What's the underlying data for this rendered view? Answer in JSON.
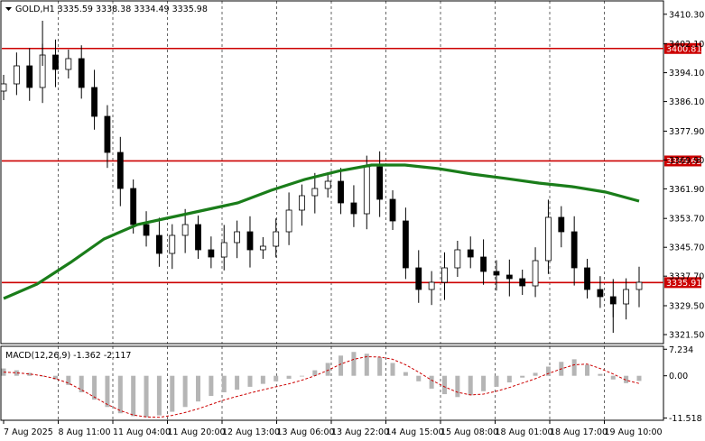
{
  "header": {
    "title": "GOLD,H1  3335.59 3338.38 3334.49 3335.98"
  },
  "macd": {
    "label": "MACD(12,26,9) -1.362 -2.117",
    "ticks": [
      7.234,
      0.0,
      -11.518
    ],
    "tick_labels": [
      "7.234",
      "0.00",
      "-11.518"
    ]
  },
  "chart_data": [
    {
      "type": "candlestick",
      "title": "GOLD,H1",
      "ylim": [
        3319,
        3414
      ],
      "y_ticks": [
        3410.3,
        3402.1,
        3394.1,
        3386.1,
        3377.9,
        3369.9,
        3361.9,
        3353.7,
        3345.7,
        3337.7,
        3329.5,
        3321.5
      ],
      "y_tick_labels": [
        "3410.30",
        "3402.10",
        "3394.10",
        "3386.10",
        "3377.90",
        "3369.90",
        "3361.90",
        "3353.70",
        "3345.70",
        "3337.70",
        "3329.50",
        "3321.50"
      ],
      "x_tick_labels": [
        "7 Aug 2025",
        "8 Aug 11:00",
        "11 Aug 04:00",
        "11 Aug 20:00",
        "12 Aug 13:00",
        "13 Aug 06:00",
        "13 Aug 22:00",
        "14 Aug 15:00",
        "15 Aug 08:00",
        "18 Aug 01:00",
        "18 Aug 17:00",
        "19 Aug 10:00"
      ],
      "grid": true,
      "horizontal_levels": [
        {
          "value": 3400.81,
          "label": "3400.81",
          "color": "#cc0000"
        },
        {
          "value": 3369.63,
          "label": "3369.63",
          "color": "#cc0000"
        },
        {
          "value": 3335.91,
          "label": "3335.91",
          "color": "#cc0000"
        }
      ],
      "moving_average": {
        "color": "#1a7d1a",
        "values": [
          3331.5,
          3335.5,
          3341.5,
          3348.0,
          3352.0,
          3354.0,
          3356.0,
          3358.0,
          3361.5,
          3364.5,
          3366.8,
          3368.5,
          3368.5,
          3367.5,
          3366.0,
          3364.8,
          3363.5,
          3362.5,
          3361.0,
          3358.5
        ]
      },
      "price": {
        "color": "#000000",
        "values": [
          3391,
          3396,
          3390,
          3399,
          3395,
          3398,
          3390,
          3382,
          3372,
          3362,
          3352,
          3349,
          3344,
          3349,
          3352,
          3345,
          3343,
          3347,
          3350,
          3345,
          3346,
          3350,
          3356,
          3360,
          3362,
          3364,
          3358,
          3355,
          3368,
          3359,
          3353,
          3340,
          3334,
          3336,
          3340,
          3345,
          3343,
          3339,
          3338,
          3337,
          3335,
          3342,
          3354,
          3350,
          3340,
          3334,
          3332,
          3330,
          3334,
          3336
        ],
        "high": 3408.5,
        "low": 3322
      },
      "macd_histogram": [
        2.0,
        1.5,
        0.8,
        0.0,
        -1.0,
        -2.5,
        -4.5,
        -6.5,
        -8.5,
        -10.2,
        -11.0,
        -11.3,
        -10.8,
        -9.8,
        -8.5,
        -7.0,
        -5.5,
        -4.5,
        -3.8,
        -3.0,
        -2.2,
        -1.5,
        -0.8,
        0.0,
        1.5,
        3.5,
        5.5,
        6.5,
        6.0,
        5.0,
        3.5,
        1.0,
        -1.5,
        -3.5,
        -5.0,
        -5.8,
        -5.3,
        -4.2,
        -3.0,
        -1.8,
        -0.5,
        0.8,
        2.5,
        3.8,
        4.5,
        3.0,
        0.5,
        -1.0,
        -2.0,
        -1.4
      ],
      "macd_signal": [
        1.0,
        0.8,
        0.5,
        0.0,
        -0.8,
        -2.0,
        -3.8,
        -5.8,
        -7.8,
        -9.5,
        -10.7,
        -11.2,
        -11.3,
        -10.8,
        -10.0,
        -9.0,
        -7.8,
        -6.6,
        -5.6,
        -4.7,
        -3.8,
        -3.0,
        -2.2,
        -1.2,
        0.0,
        1.5,
        3.2,
        4.5,
        5.2,
        5.1,
        4.5,
        3.0,
        1.0,
        -1.2,
        -3.0,
        -4.5,
        -5.2,
        -5.0,
        -4.2,
        -3.2,
        -2.0,
        -0.8,
        0.6,
        1.9,
        3.0,
        3.2,
        2.0,
        0.5,
        -1.2,
        -2.1
      ]
    }
  ]
}
